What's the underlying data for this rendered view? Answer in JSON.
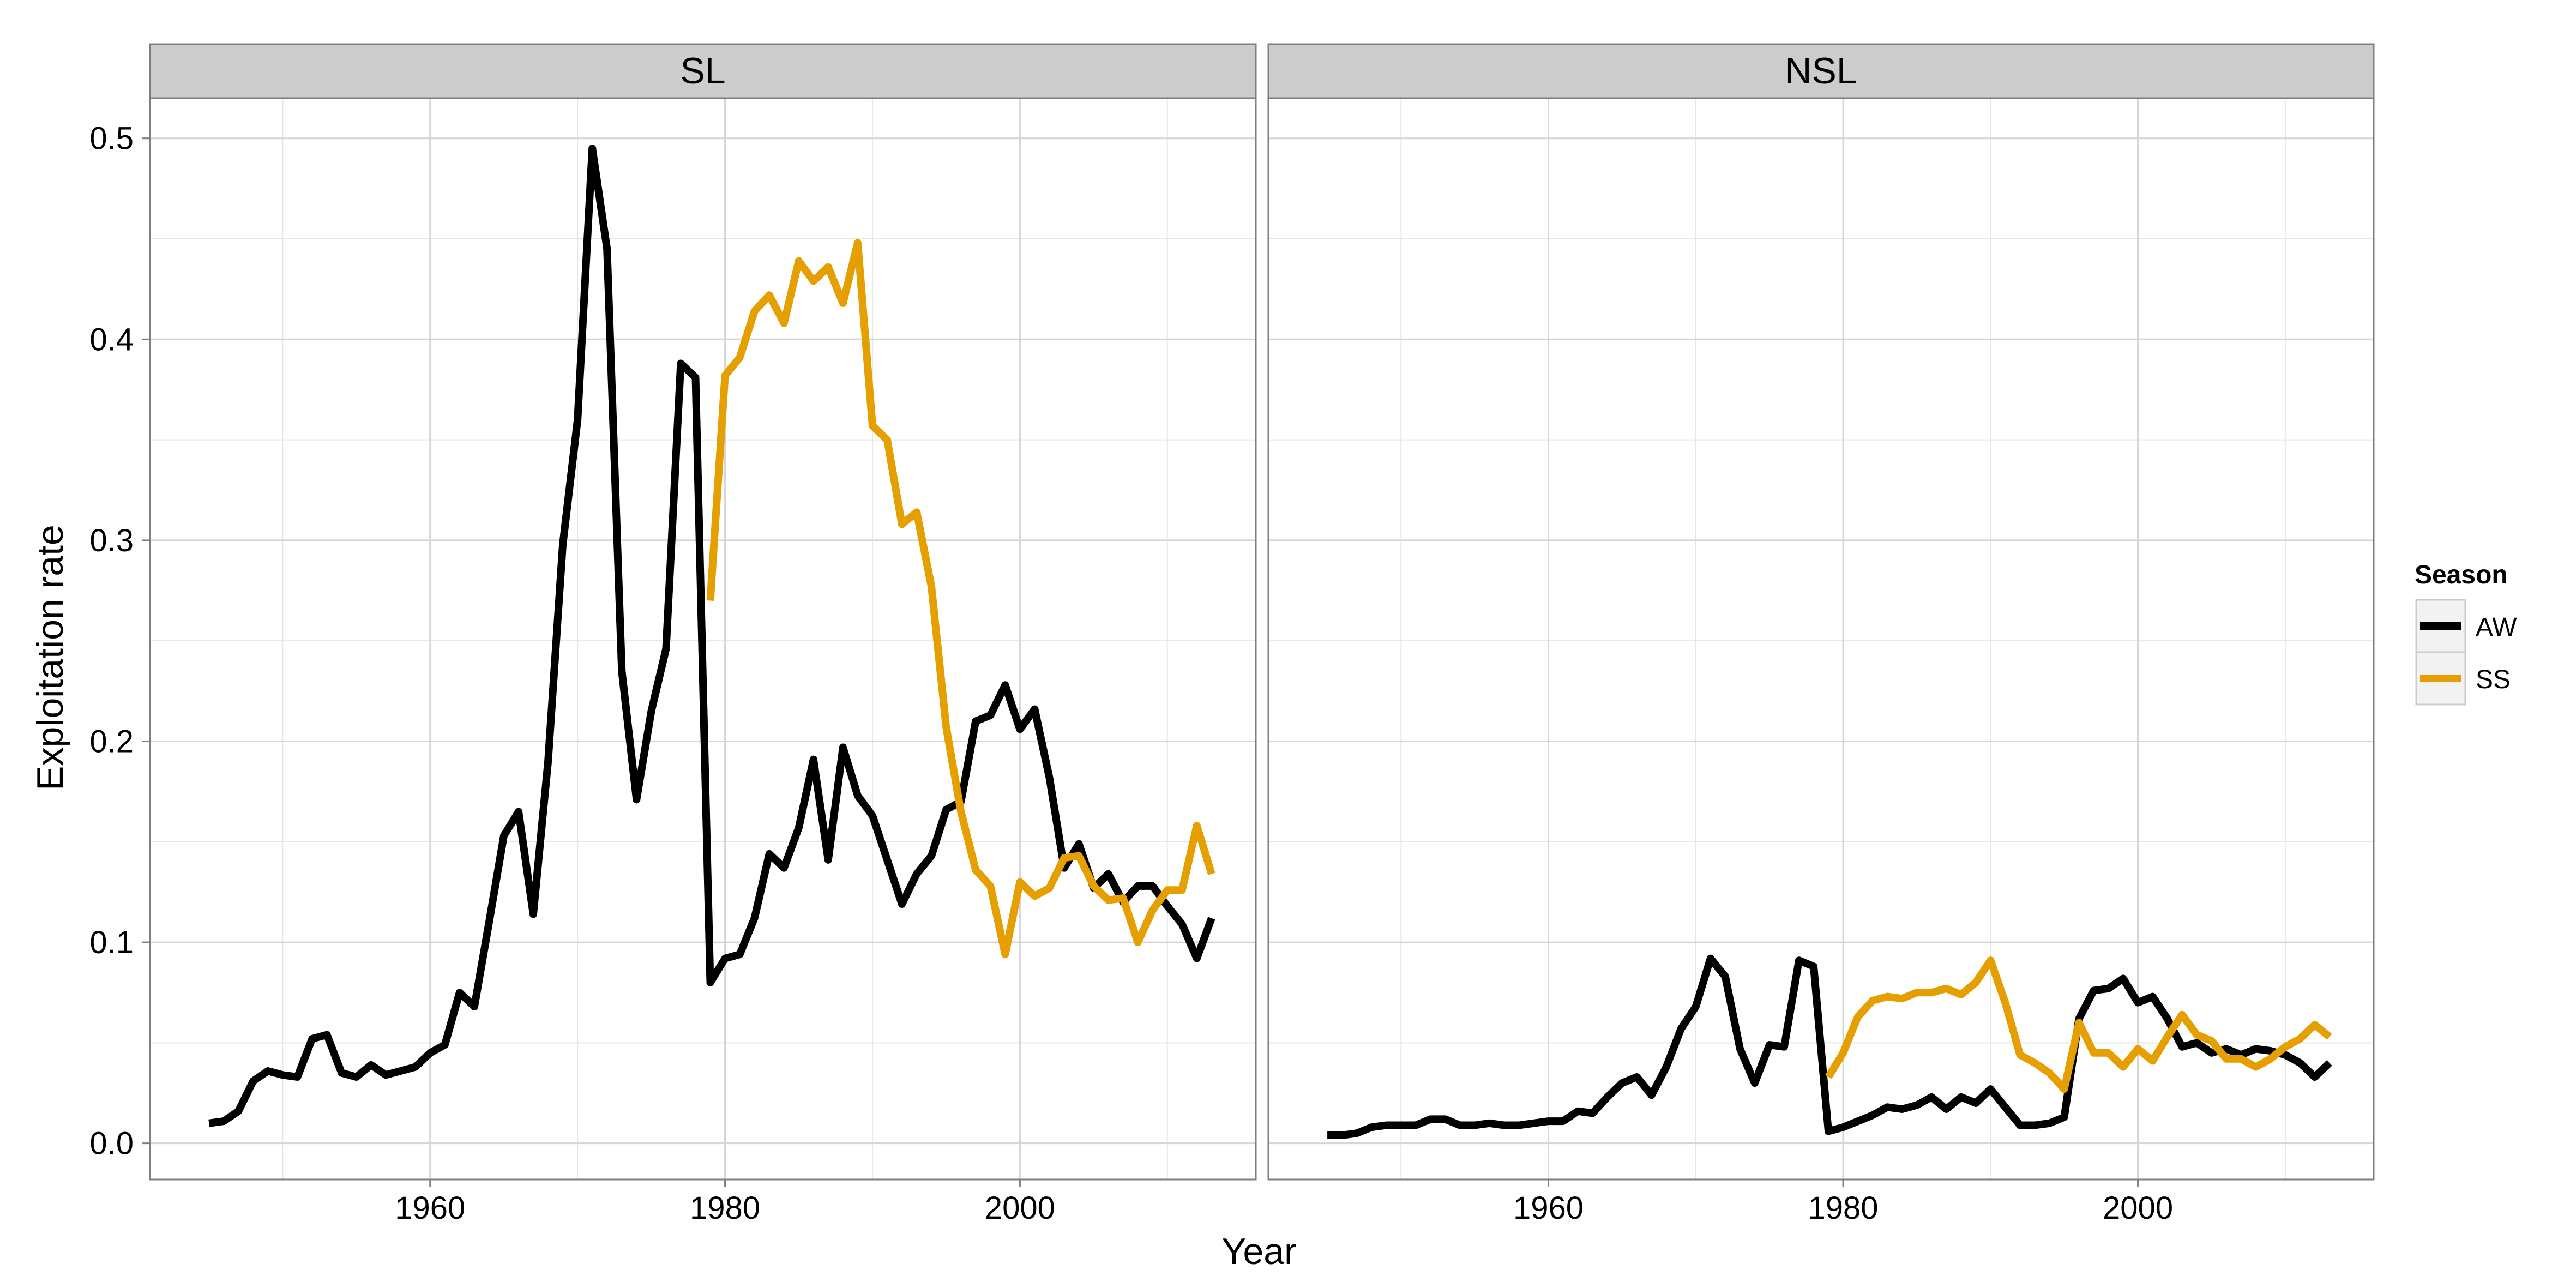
{
  "chart_data": {
    "type": "line",
    "xlabel": "Year",
    "ylabel": "Exploitation rate",
    "xlim": [
      1941,
      2016
    ],
    "ylim": [
      -0.018,
      0.52
    ],
    "x_ticks": [
      1960,
      1980,
      2000
    ],
    "y_ticks": [
      0.0,
      0.1,
      0.2,
      0.3,
      0.4,
      0.5
    ],
    "y_tick_labels": [
      "0.0",
      "0.1",
      "0.2",
      "0.3",
      "0.4",
      "0.5"
    ],
    "grid": true,
    "legend": {
      "title": "Season",
      "placement": "right",
      "entries": [
        {
          "label": "AW",
          "color": "#000000"
        },
        {
          "label": "SS",
          "color": "#E69F00"
        }
      ]
    },
    "panels": [
      {
        "title": "SL",
        "series": [
          {
            "name": "AW",
            "color": "#000000",
            "x": [
              1945,
              1946,
              1947,
              1948,
              1949,
              1950,
              1951,
              1952,
              1953,
              1954,
              1955,
              1956,
              1957,
              1958,
              1959,
              1960,
              1961,
              1962,
              1963,
              1964,
              1965,
              1966,
              1967,
              1968,
              1969,
              1970,
              1971,
              1972,
              1973,
              1974,
              1975,
              1976,
              1977,
              1978,
              1979,
              1980,
              1981,
              1982,
              1983,
              1984,
              1985,
              1986,
              1987,
              1988,
              1989,
              1990,
              1991,
              1992,
              1993,
              1994,
              1995,
              1996,
              1997,
              1998,
              1999,
              2000,
              2001,
              2002,
              2003,
              2004,
              2005,
              2006,
              2007,
              2008,
              2009,
              2010,
              2011,
              2012,
              2013
            ],
            "y": [
              0.01,
              0.011,
              0.016,
              0.031,
              0.036,
              0.034,
              0.033,
              0.052,
              0.054,
              0.035,
              0.033,
              0.039,
              0.034,
              0.036,
              0.038,
              0.045,
              0.049,
              0.075,
              0.068,
              0.11,
              0.153,
              0.165,
              0.114,
              0.19,
              0.298,
              0.36,
              0.495,
              0.445,
              0.235,
              0.171,
              0.215,
              0.246,
              0.388,
              0.381,
              0.08,
              0.092,
              0.094,
              0.112,
              0.144,
              0.137,
              0.157,
              0.191,
              0.141,
              0.197,
              0.173,
              0.163,
              0.141,
              0.119,
              0.134,
              0.143,
              0.166,
              0.17,
              0.21,
              0.213,
              0.228,
              0.206,
              0.216,
              0.182,
              0.137,
              0.149,
              0.127,
              0.134,
              0.12,
              0.128,
              0.128,
              0.118,
              0.109,
              0.092,
              0.112
            ]
          },
          {
            "name": "SS",
            "color": "#E69F00",
            "x": [
              1979,
              1980,
              1981,
              1982,
              1983,
              1984,
              1985,
              1986,
              1987,
              1988,
              1989,
              1990,
              1991,
              1992,
              1993,
              1994,
              1995,
              1996,
              1997,
              1998,
              1999,
              2000,
              2001,
              2002,
              2003,
              2004,
              2005,
              2006,
              2007,
              2008,
              2009,
              2010,
              2011,
              2012,
              2013
            ],
            "y": [
              0.27,
              0.382,
              0.391,
              0.414,
              0.422,
              0.408,
              0.439,
              0.429,
              0.436,
              0.418,
              0.448,
              0.357,
              0.35,
              0.308,
              0.314,
              0.277,
              0.207,
              0.165,
              0.136,
              0.128,
              0.094,
              0.13,
              0.123,
              0.127,
              0.142,
              0.143,
              0.128,
              0.121,
              0.122,
              0.1,
              0.116,
              0.126,
              0.126,
              0.158,
              0.134
            ]
          }
        ]
      },
      {
        "title": "NSL",
        "series": [
          {
            "name": "AW",
            "color": "#000000",
            "x": [
              1945,
              1946,
              1947,
              1948,
              1949,
              1950,
              1951,
              1952,
              1953,
              1954,
              1955,
              1956,
              1957,
              1958,
              1959,
              1960,
              1961,
              1962,
              1963,
              1964,
              1965,
              1966,
              1967,
              1968,
              1969,
              1970,
              1971,
              1972,
              1973,
              1974,
              1975,
              1976,
              1977,
              1978,
              1979,
              1980,
              1981,
              1982,
              1983,
              1984,
              1985,
              1986,
              1987,
              1988,
              1989,
              1990,
              1991,
              1992,
              1993,
              1994,
              1995,
              1996,
              1997,
              1998,
              1999,
              2000,
              2001,
              2002,
              2003,
              2004,
              2005,
              2006,
              2007,
              2008,
              2009,
              2010,
              2011,
              2012,
              2013
            ],
            "y": [
              0.004,
              0.004,
              0.005,
              0.008,
              0.009,
              0.009,
              0.009,
              0.012,
              0.012,
              0.009,
              0.009,
              0.01,
              0.009,
              0.009,
              0.01,
              0.011,
              0.011,
              0.016,
              0.015,
              0.023,
              0.03,
              0.033,
              0.024,
              0.038,
              0.057,
              0.068,
              0.092,
              0.083,
              0.047,
              0.03,
              0.049,
              0.048,
              0.091,
              0.088,
              0.006,
              0.008,
              0.011,
              0.014,
              0.018,
              0.017,
              0.019,
              0.023,
              0.017,
              0.023,
              0.02,
              0.027,
              0.018,
              0.009,
              0.009,
              0.01,
              0.013,
              0.062,
              0.076,
              0.077,
              0.082,
              0.07,
              0.073,
              0.062,
              0.048,
              0.05,
              0.045,
              0.047,
              0.044,
              0.047,
              0.046,
              0.044,
              0.04,
              0.033,
              0.04
            ]
          },
          {
            "name": "SS",
            "color": "#E69F00",
            "x": [
              1979,
              1980,
              1981,
              1982,
              1983,
              1984,
              1985,
              1986,
              1987,
              1988,
              1989,
              1990,
              1991,
              1992,
              1993,
              1994,
              1995,
              1996,
              1997,
              1998,
              1999,
              2000,
              2001,
              2002,
              2003,
              2004,
              2005,
              2006,
              2007,
              2008,
              2009,
              2010,
              2011,
              2012,
              2013
            ],
            "y": [
              0.033,
              0.045,
              0.063,
              0.071,
              0.073,
              0.072,
              0.075,
              0.075,
              0.077,
              0.074,
              0.08,
              0.091,
              0.07,
              0.044,
              0.04,
              0.035,
              0.027,
              0.06,
              0.045,
              0.045,
              0.038,
              0.047,
              0.041,
              0.053,
              0.064,
              0.054,
              0.051,
              0.042,
              0.042,
              0.038,
              0.042,
              0.048,
              0.052,
              0.059,
              0.053
            ]
          }
        ]
      }
    ]
  }
}
